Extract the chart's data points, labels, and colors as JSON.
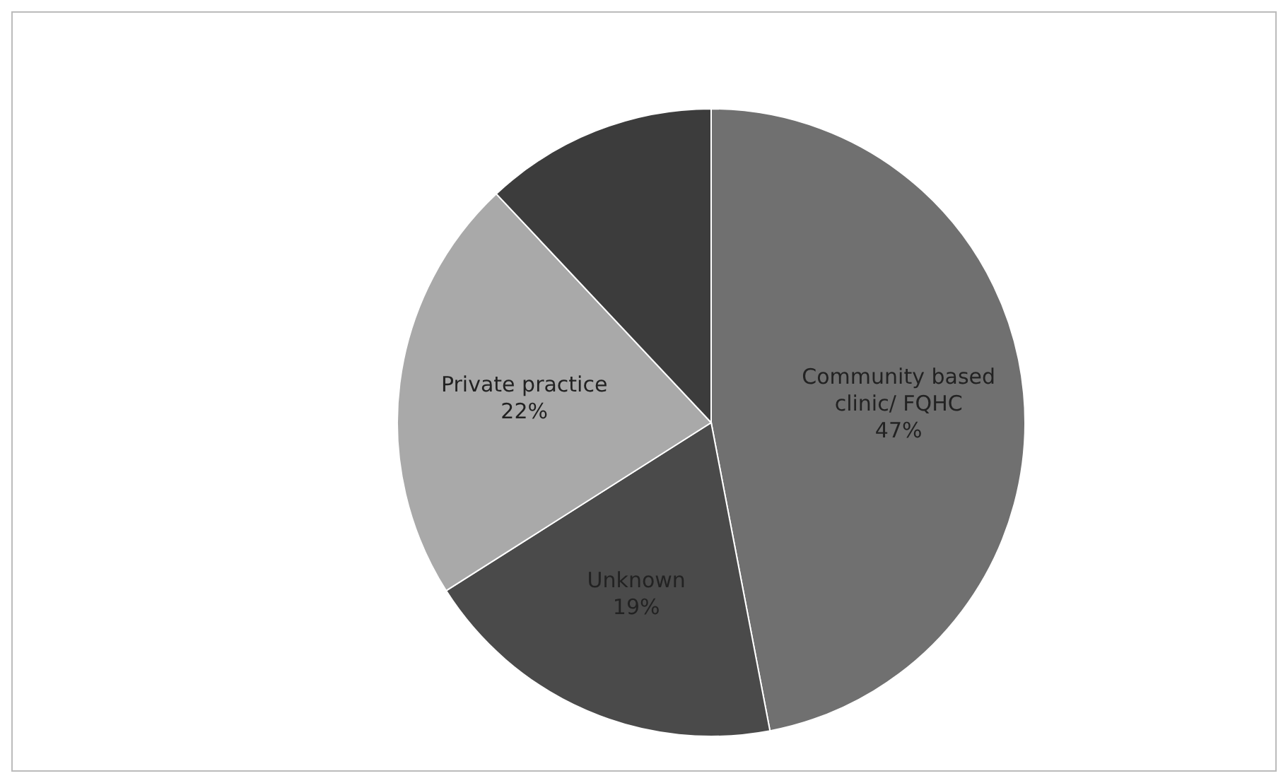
{
  "chart_data": {
    "type": "pie",
    "categories": [
      "Community based clinic/ FQHC",
      "Unknown",
      "Private practice",
      null
    ],
    "values": [
      47,
      19,
      22,
      12
    ],
    "colors": [
      "#707070",
      "#4a4a4a",
      "#a9a9a9",
      "#3c3c3c"
    ],
    "value_labels": [
      "47%",
      "19%",
      "22%",
      null
    ],
    "legend": false
  }
}
